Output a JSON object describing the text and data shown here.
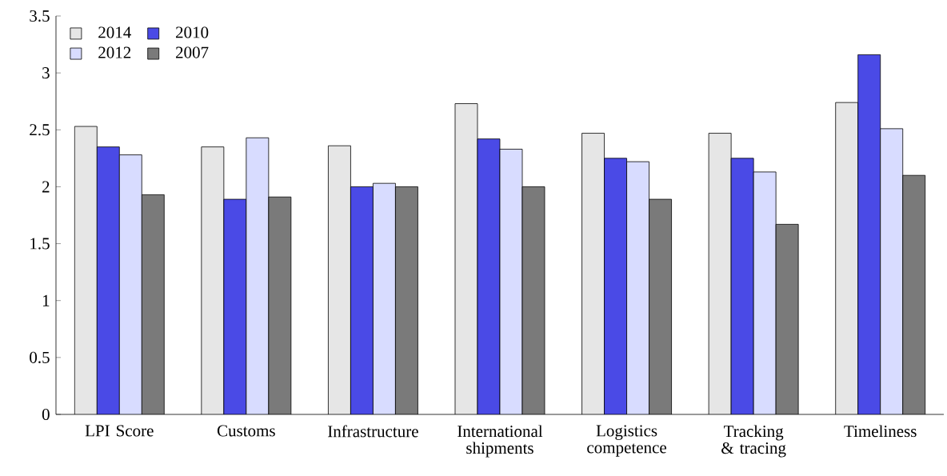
{
  "chart_data": {
    "type": "bar",
    "categories": [
      "LPI Score",
      "Customs",
      "Infrastructure",
      "International shipments",
      "Logistics competence",
      "Tracking & tracing",
      "Timeliness"
    ],
    "series": [
      {
        "name": "2014",
        "color": "#e6e6e6",
        "values": [
          2.53,
          2.35,
          2.36,
          2.73,
          2.47,
          2.47,
          2.74
        ]
      },
      {
        "name": "2010",
        "color": "#4a4ae6",
        "values": [
          2.35,
          1.89,
          2.0,
          2.42,
          2.25,
          2.25,
          3.16
        ]
      },
      {
        "name": "2012",
        "color": "#d8dcff",
        "values": [
          2.28,
          2.43,
          2.03,
          2.33,
          2.22,
          2.13,
          2.51
        ]
      },
      {
        "name": "2007",
        "color": "#7a7a7a",
        "values": [
          1.93,
          1.91,
          2.0,
          2.0,
          1.89,
          1.67,
          2.1
        ]
      }
    ],
    "ylim": [
      0,
      3.5
    ],
    "yticks": [
      0,
      0.5,
      1,
      1.5,
      2,
      2.5,
      3,
      3.5
    ],
    "grid": false,
    "legend": "top left"
  }
}
